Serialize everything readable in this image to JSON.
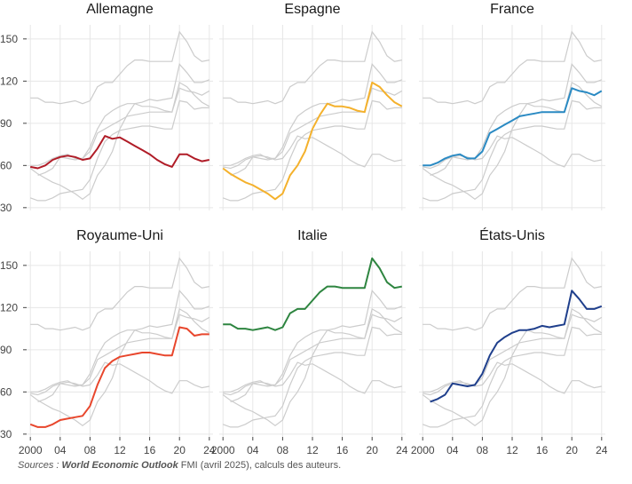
{
  "chart_data": {
    "type": "line",
    "x": [
      2000,
      2001,
      2002,
      2003,
      2004,
      2005,
      2006,
      2007,
      2008,
      2009,
      2010,
      2011,
      2012,
      2013,
      2014,
      2015,
      2016,
      2017,
      2018,
      2019,
      2020,
      2021,
      2022,
      2023,
      2024
    ],
    "xtick_labels": [
      "2000",
      "04",
      "08",
      "12",
      "16",
      "20",
      "24"
    ],
    "xtick_values": [
      2000,
      2004,
      2008,
      2012,
      2016,
      2020,
      2024
    ],
    "ytick_values": [
      30,
      60,
      90,
      120,
      150
    ],
    "ytick_labels": [
      "30",
      "60",
      "90",
      "120",
      "150"
    ],
    "ylim": [
      28,
      160
    ],
    "xlim": [
      1999.5,
      2024.5
    ],
    "grid": true,
    "background_color": "#cccccc",
    "series": [
      {
        "name": "Allemagne",
        "color": "#b01c27",
        "values": [
          59,
          58,
          60,
          64,
          66,
          67,
          66,
          64,
          65,
          72,
          81,
          79,
          80,
          77,
          74,
          71,
          68,
          64,
          61,
          59,
          68,
          68,
          65,
          63,
          64
        ]
      },
      {
        "name": "Espagne",
        "color": "#f4b12c",
        "values": [
          58,
          54,
          51,
          48,
          46,
          43,
          40,
          36,
          40,
          53,
          60,
          70,
          86,
          96,
          104,
          102,
          102,
          101,
          99,
          98,
          119,
          116,
          110,
          105,
          102
        ]
      },
      {
        "name": "France",
        "color": "#2a8ac3",
        "values": [
          60,
          60,
          62,
          65,
          67,
          68,
          65,
          65,
          70,
          83,
          86,
          89,
          92,
          95,
          96,
          97,
          98,
          98,
          98,
          98,
          115,
          113,
          112,
          110,
          113
        ]
      },
      {
        "name": "Royaume-Uni",
        "color": "#e8462c",
        "values": [
          37,
          35,
          35,
          37,
          40,
          41,
          42,
          43,
          50,
          65,
          77,
          82,
          85,
          86,
          87,
          88,
          88,
          87,
          86,
          86,
          106,
          105,
          100,
          101,
          101
        ]
      },
      {
        "name": "Italie",
        "color": "#2e8540",
        "values": [
          108,
          108,
          105,
          105,
          104,
          105,
          106,
          104,
          106,
          116,
          119,
          119,
          125,
          131,
          135,
          135,
          134,
          134,
          134,
          134,
          155,
          148,
          138,
          134,
          135
        ]
      },
      {
        "name": "États-Unis",
        "color": "#1f3f8c",
        "values": [
          null,
          53,
          55,
          58,
          66,
          65,
          64,
          65,
          73,
          86,
          95,
          99,
          102,
          104,
          104,
          105,
          107,
          106,
          107,
          108,
          132,
          126,
          119,
          119,
          121
        ]
      }
    ]
  },
  "footer": {
    "prefix": "Sources : ",
    "source_title": "World Economic Outlook",
    "suffix": " FMI (avril 2025), calculs des auteurs."
  }
}
